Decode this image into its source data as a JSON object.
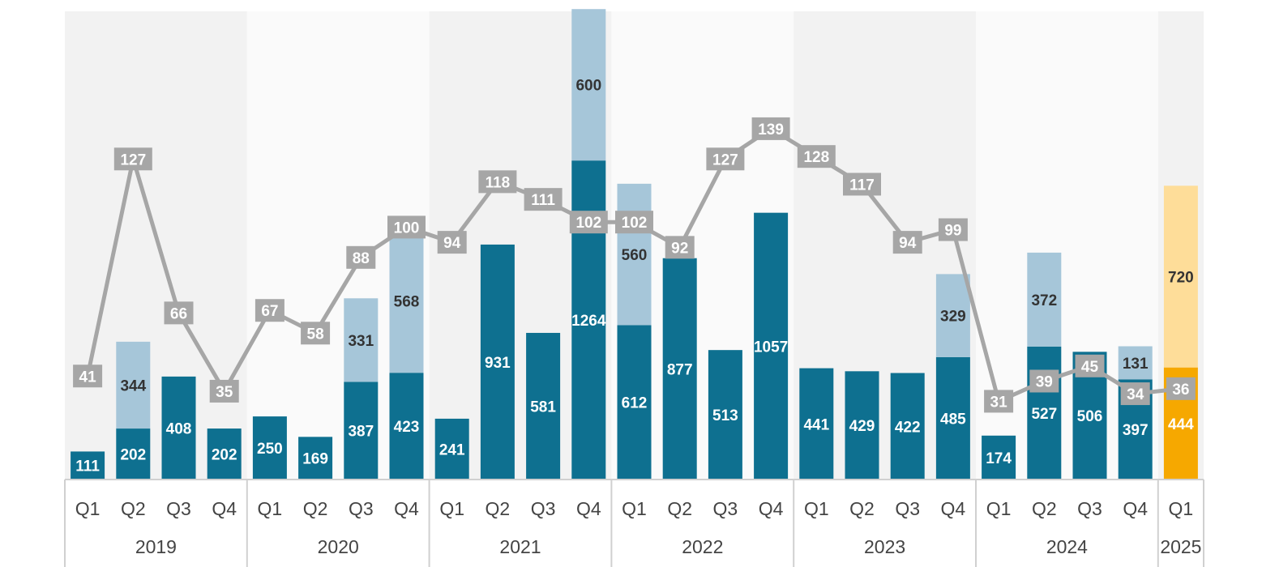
{
  "chart_data": {
    "type": "bar",
    "stacked": true,
    "secondary_type": "line",
    "years": [
      {
        "label": "2019",
        "quarters": 4
      },
      {
        "label": "2020",
        "quarters": 4
      },
      {
        "label": "2021",
        "quarters": 4
      },
      {
        "label": "2022",
        "quarters": 4
      },
      {
        "label": "2023",
        "quarters": 4
      },
      {
        "label": "2024",
        "quarters": 4
      },
      {
        "label": "2025",
        "quarters": 1
      }
    ],
    "categories": [
      "Q1",
      "Q2",
      "Q3",
      "Q4",
      "Q1",
      "Q2",
      "Q3",
      "Q4",
      "Q1",
      "Q2",
      "Q3",
      "Q4",
      "Q1",
      "Q2",
      "Q3",
      "Q4",
      "Q1",
      "Q2",
      "Q3",
      "Q4",
      "Q1",
      "Q2",
      "Q3",
      "Q4",
      "Q1"
    ],
    "series": [
      {
        "values": [
          111,
          202,
          408,
          202,
          250,
          169,
          387,
          423,
          241,
          931,
          581,
          1264,
          612,
          877,
          513,
          1057,
          441,
          429,
          422,
          485,
          174,
          527,
          506,
          397,
          444
        ],
        "labels": [
          "111",
          "202",
          "408",
          "202",
          "250",
          "169",
          "387",
          "423",
          "241",
          "931",
          "581",
          "1264",
          "612",
          "877",
          "513",
          "1057",
          "441",
          "429",
          "422",
          "485",
          "174",
          "527",
          "506",
          "397",
          "444"
        ]
      },
      {
        "values": [
          null,
          344,
          null,
          null,
          null,
          null,
          331,
          568,
          null,
          null,
          null,
          600,
          560,
          null,
          null,
          null,
          null,
          null,
          null,
          329,
          null,
          372,
          null,
          131,
          720
        ],
        "labels": [
          "",
          "344",
          "",
          "",
          "",
          "",
          "331",
          "568",
          "",
          "",
          "",
          "600",
          "560",
          "",
          "",
          "",
          "",
          "",
          "",
          "329",
          "",
          "372",
          "",
          "131",
          "720"
        ]
      },
      {
        "type": "line",
        "values": [
          41,
          127,
          66,
          35,
          67,
          58,
          88,
          100,
          94,
          118,
          111,
          102,
          102,
          92,
          127,
          139,
          128,
          117,
          94,
          99,
          31,
          39,
          45,
          34,
          36
        ],
        "labels": [
          "41",
          "127",
          "66",
          "35",
          "67",
          "58",
          "88",
          "100",
          "94",
          "118",
          "111",
          "102",
          "102",
          "92",
          "127",
          "139",
          "128",
          "117",
          "94",
          "99",
          "31",
          "39",
          "45",
          "34",
          "36"
        ]
      }
    ],
    "ylim_bars": [
      0,
      1900
    ],
    "ylim_line": [
      0,
      190
    ],
    "grid": false,
    "colors": {
      "bar_primary": "#0e7090",
      "bar_secondary": "#a6c6d9",
      "bar_primary_highlight": "#f6a800",
      "bar_secondary_highlight": "#fedd99",
      "line": "#a6a6a6",
      "band_a": "#f2f2f2",
      "band_b": "#fafafa",
      "axis": "#d0d0d0"
    }
  }
}
